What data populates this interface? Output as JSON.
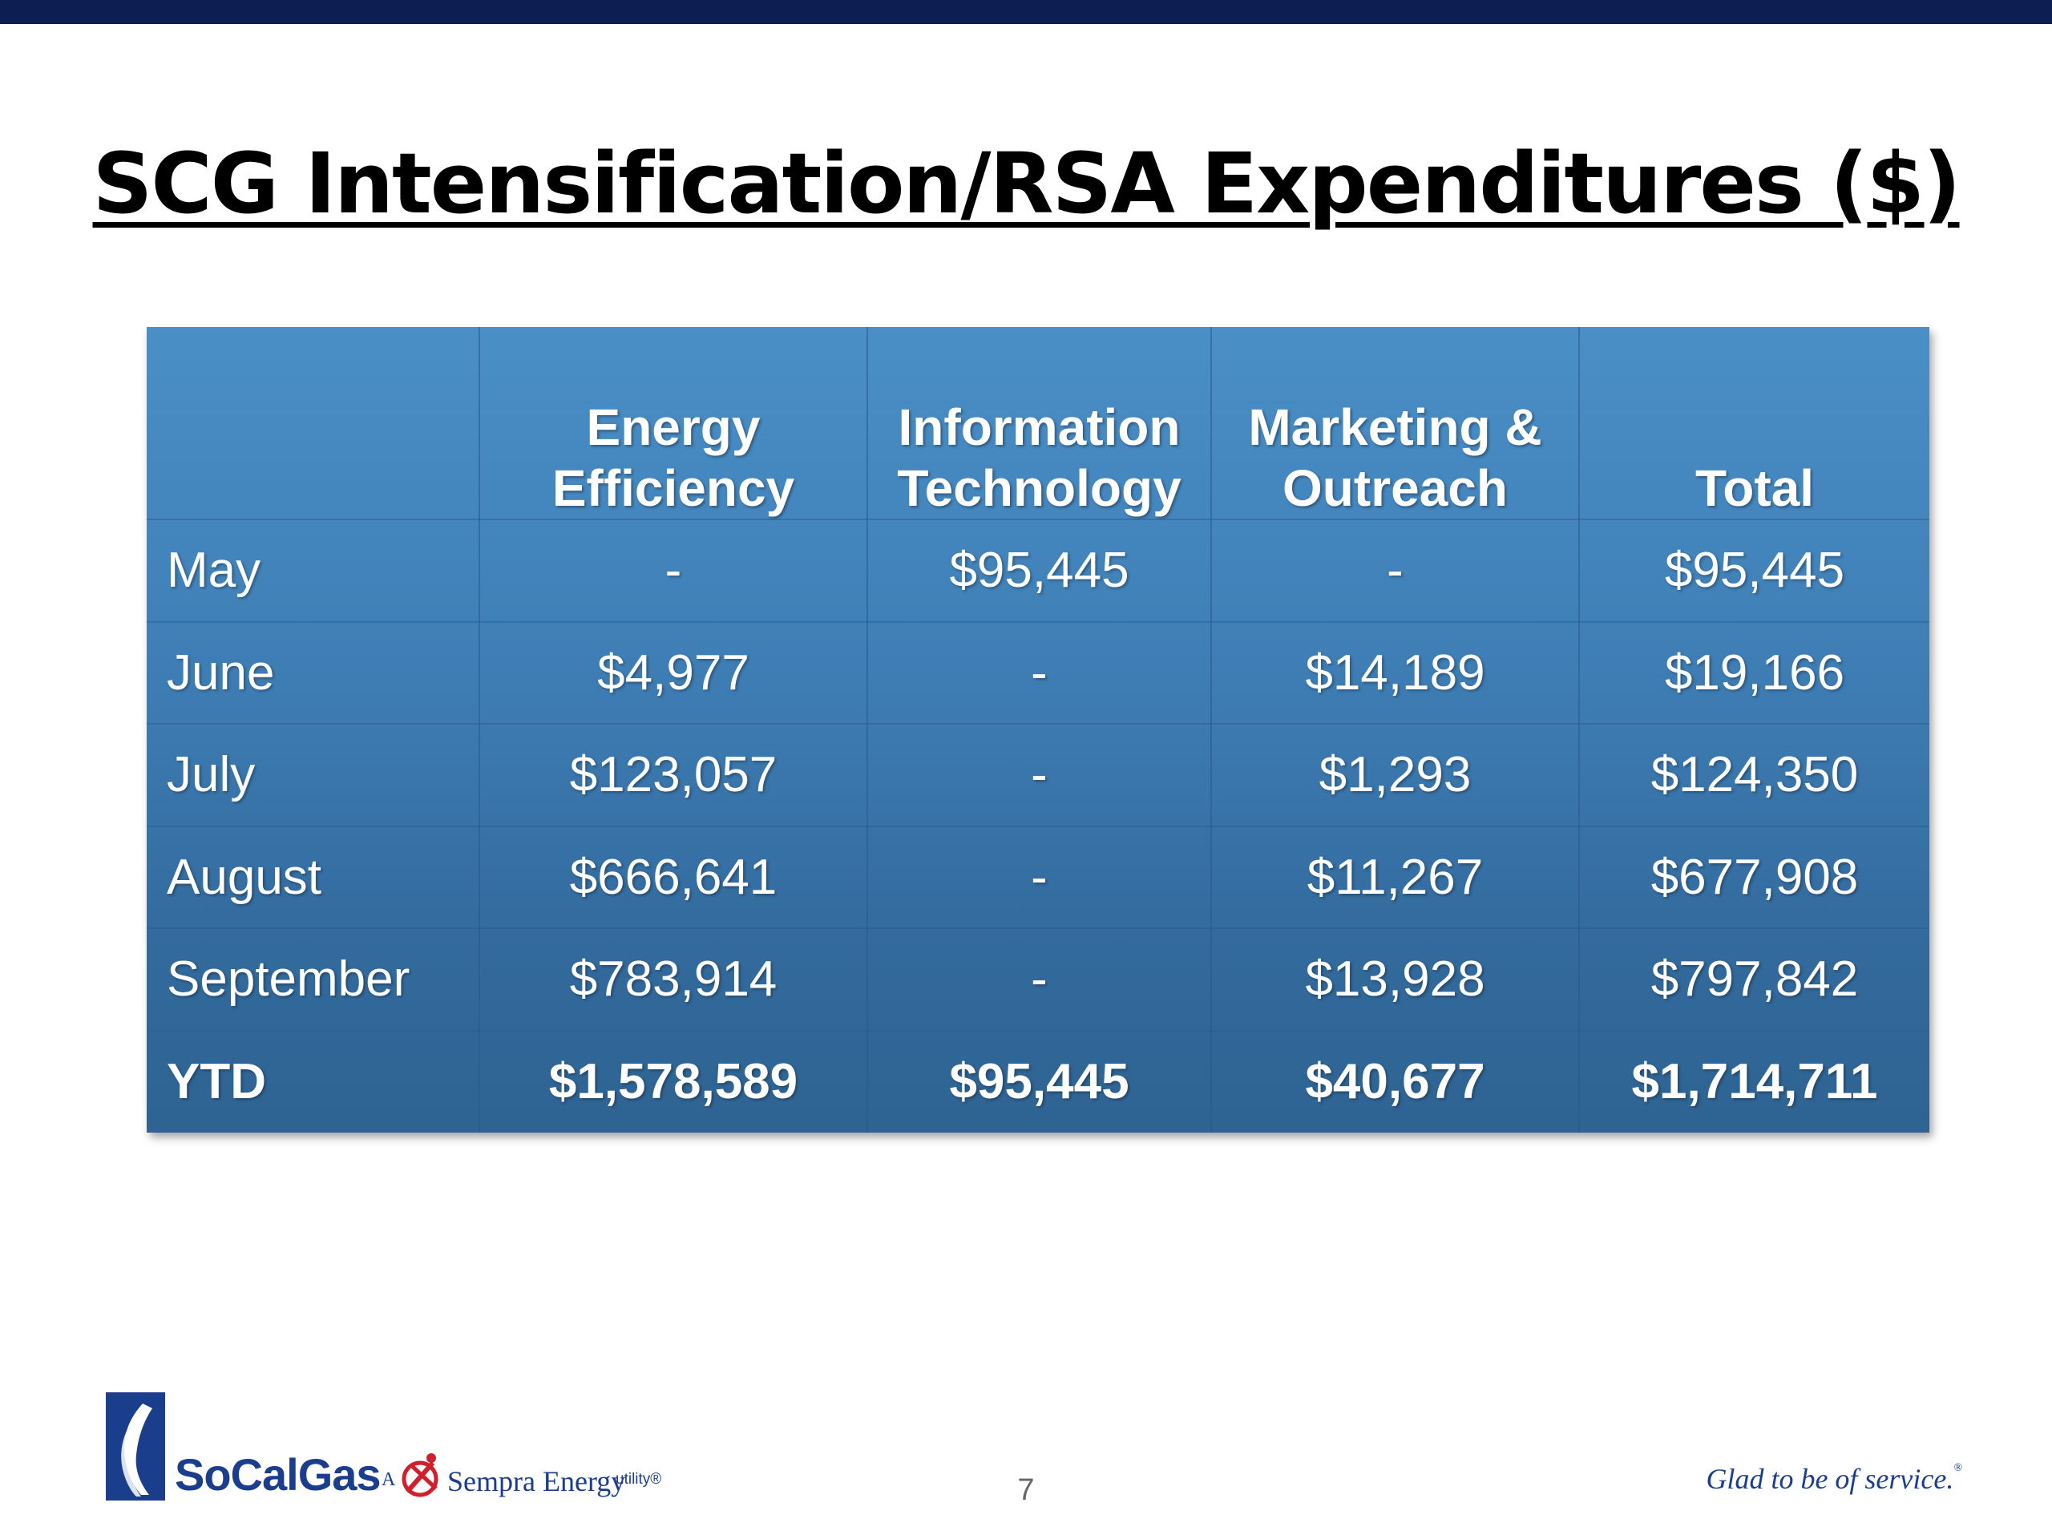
{
  "slide": {
    "title": "SCG Intensification/RSA Expenditures ($)",
    "page_number": "7",
    "tagline": "Glad to be of service.",
    "tagline_mark": "®"
  },
  "table": {
    "headers": [
      {
        "line1": "",
        "line2": ""
      },
      {
        "line1": "Energy",
        "line2": "Efficiency"
      },
      {
        "line1": "Information",
        "line2": "Technology"
      },
      {
        "line1": "Marketing &",
        "line2": "Outreach"
      },
      {
        "line1": "",
        "line2": "Total"
      }
    ],
    "rows": [
      [
        "May",
        "-",
        "$95,445",
        "-",
        "$95,445"
      ],
      [
        "June",
        "$4,977",
        "-",
        "$14,189",
        "$19,166"
      ],
      [
        "July",
        "$123,057",
        "-",
        "$1,293",
        "$124,350"
      ],
      [
        "August",
        "$666,641",
        "-",
        "$11,267",
        "$677,908"
      ],
      [
        "September",
        "$783,914",
        "-",
        "$13,928",
        "$797,842"
      ],
      [
        "YTD",
        "$1,578,589",
        "$95,445",
        "$40,677",
        "$1,714,711"
      ]
    ]
  },
  "logo": {
    "brand": "SoCalGas",
    "a": "A",
    "parent": "Sempra Energy",
    "suffix": "utility®"
  },
  "colors": {
    "top_bar": "#0d1f52",
    "table_top": "#4a8fc7",
    "table_bottom": "#2e6392",
    "brand_blue": "#1a3e8c",
    "sempra_red": "#d0202e"
  },
  "icons": {
    "logo_flame": "flame-icon",
    "sempra_mark": "sempra-swirl-icon"
  }
}
